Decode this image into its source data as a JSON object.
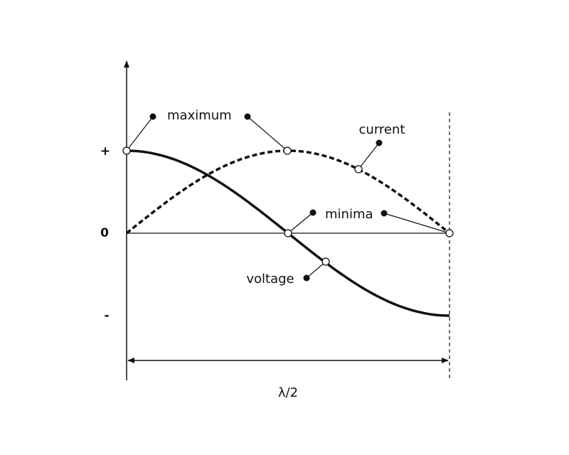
{
  "axis": {
    "labels": [
      "+",
      "0",
      "-"
    ]
  },
  "annotations": [
    {
      "label": "maximum"
    },
    {
      "label": "current"
    },
    {
      "label": "minima"
    },
    {
      "label": "voltage"
    }
  ],
  "dimension": {
    "label": "λ/2"
  }
}
